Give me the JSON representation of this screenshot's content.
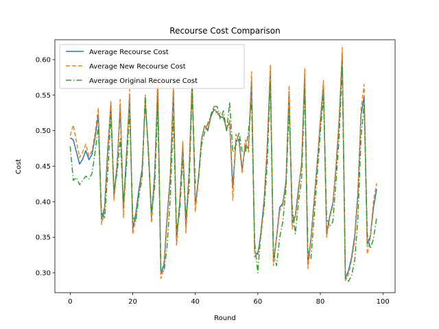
{
  "chart_data": {
    "type": "line",
    "title": "Recourse Cost Comparison",
    "xlabel": "Round",
    "ylabel": "Cost",
    "xlim": [
      -4.9,
      103.9
    ],
    "ylim": [
      0.272,
      0.628
    ],
    "xticks": [
      0,
      20,
      40,
      60,
      80,
      100
    ],
    "yticks": [
      0.3,
      0.35,
      0.4,
      0.45,
      0.5,
      0.55,
      0.6
    ],
    "ytick_labels": [
      "0.30",
      "0.35",
      "0.40",
      "0.45",
      "0.50",
      "0.55",
      "0.60"
    ],
    "grid": false,
    "legend_position": "top-left",
    "x": [
      0,
      1,
      2,
      3,
      4,
      5,
      6,
      7,
      8,
      9,
      10,
      11,
      12,
      13,
      14,
      15,
      16,
      17,
      18,
      19,
      20,
      21,
      22,
      23,
      24,
      25,
      26,
      27,
      28,
      29,
      30,
      31,
      32,
      33,
      34,
      35,
      36,
      37,
      38,
      39,
      40,
      41,
      42,
      43,
      44,
      45,
      46,
      47,
      48,
      49,
      50,
      51,
      52,
      53,
      54,
      55,
      56,
      57,
      58,
      59,
      60,
      61,
      62,
      63,
      64,
      65,
      66,
      67,
      68,
      69,
      70,
      71,
      72,
      73,
      74,
      75,
      76,
      77,
      78,
      79,
      80,
      81,
      82,
      83,
      84,
      85,
      86,
      87,
      88,
      89,
      90,
      91,
      92,
      93,
      94,
      95,
      96,
      97,
      98
    ],
    "series": [
      {
        "name": "Average Recourse Cost",
        "color": "#1f77b4",
        "dash": "solid",
        "values": [
          0.49,
          0.487,
          0.47,
          0.453,
          0.46,
          0.472,
          0.459,
          0.467,
          0.492,
          0.522,
          0.375,
          0.392,
          0.474,
          0.536,
          0.408,
          0.452,
          0.532,
          0.39,
          0.466,
          0.546,
          0.362,
          0.384,
          0.418,
          0.446,
          0.54,
          0.475,
          0.378,
          0.438,
          0.562,
          0.298,
          0.312,
          0.378,
          0.436,
          0.558,
          0.345,
          0.398,
          0.48,
          0.365,
          0.44,
          0.568,
          0.395,
          0.432,
          0.488,
          0.507,
          0.5,
          0.52,
          0.53,
          0.526,
          0.52,
          0.518,
          0.503,
          0.512,
          0.42,
          0.486,
          0.488,
          0.445,
          0.48,
          0.475,
          0.57,
          0.328,
          0.326,
          0.356,
          0.402,
          0.474,
          0.584,
          0.315,
          0.35,
          0.392,
          0.398,
          0.428,
          0.555,
          0.37,
          0.38,
          0.418,
          0.452,
          0.578,
          0.312,
          0.348,
          0.402,
          0.455,
          0.512,
          0.564,
          0.355,
          0.38,
          0.398,
          0.448,
          0.512,
          0.606,
          0.292,
          0.303,
          0.322,
          0.352,
          0.412,
          0.522,
          0.548,
          0.34,
          0.352,
          0.392,
          0.418
        ]
      },
      {
        "name": "Average New Recourse Cost",
        "color": "#ff7f0e",
        "dash": "6,3",
        "values": [
          0.493,
          0.508,
          0.484,
          0.462,
          0.47,
          0.481,
          0.464,
          0.472,
          0.498,
          0.532,
          0.368,
          0.386,
          0.465,
          0.543,
          0.402,
          0.447,
          0.544,
          0.378,
          0.458,
          0.558,
          0.354,
          0.378,
          0.411,
          0.44,
          0.548,
          0.47,
          0.37,
          0.432,
          0.576,
          0.292,
          0.306,
          0.372,
          0.43,
          0.568,
          0.338,
          0.394,
          0.485,
          0.356,
          0.436,
          0.58,
          0.386,
          0.428,
          0.489,
          0.508,
          0.502,
          0.523,
          0.534,
          0.522,
          0.525,
          0.52,
          0.5,
          0.515,
          0.402,
          0.495,
          0.483,
          0.44,
          0.487,
          0.47,
          0.583,
          0.322,
          0.33,
          0.35,
          0.398,
          0.48,
          0.593,
          0.31,
          0.348,
          0.387,
          0.395,
          0.423,
          0.564,
          0.362,
          0.378,
          0.412,
          0.455,
          0.587,
          0.306,
          0.344,
          0.398,
          0.452,
          0.518,
          0.571,
          0.35,
          0.378,
          0.394,
          0.452,
          0.518,
          0.617,
          0.289,
          0.298,
          0.318,
          0.346,
          0.406,
          0.53,
          0.565,
          0.326,
          0.35,
          0.402,
          0.426
        ]
      },
      {
        "name": "Average Original Recourse Cost",
        "color": "#2ca02c",
        "dash": "8,3,1.5,3",
        "values": [
          0.478,
          0.43,
          0.434,
          0.424,
          0.43,
          0.436,
          0.432,
          0.44,
          0.472,
          0.506,
          0.385,
          0.376,
          0.44,
          0.522,
          0.42,
          0.44,
          0.488,
          0.4,
          0.45,
          0.528,
          0.378,
          0.372,
          0.41,
          0.432,
          0.55,
          0.466,
          0.384,
          0.42,
          0.536,
          0.306,
          0.302,
          0.338,
          0.405,
          0.52,
          0.362,
          0.384,
          0.46,
          0.38,
          0.416,
          0.556,
          0.426,
          0.43,
          0.48,
          0.498,
          0.51,
          0.522,
          0.534,
          0.534,
          0.516,
          0.528,
          0.5,
          0.54,
          0.47,
          0.48,
          0.498,
          0.47,
          0.468,
          0.5,
          0.54,
          0.342,
          0.3,
          0.36,
          0.39,
          0.452,
          0.57,
          0.33,
          0.31,
          0.35,
          0.372,
          0.418,
          0.53,
          0.392,
          0.355,
          0.4,
          0.432,
          0.563,
          0.33,
          0.32,
          0.378,
          0.438,
          0.498,
          0.548,
          0.378,
          0.365,
          0.372,
          0.428,
          0.49,
          0.59,
          0.294,
          0.288,
          0.296,
          0.318,
          0.376,
          0.49,
          0.538,
          0.354,
          0.334,
          0.348,
          0.378
        ]
      }
    ]
  }
}
